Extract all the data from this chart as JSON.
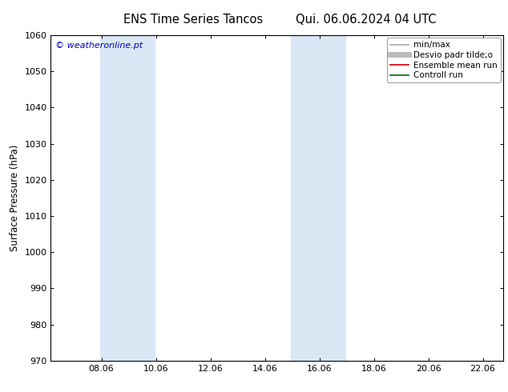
{
  "title_left": "ENS Time Series Tancos",
  "title_right": "Qui. 06.06.2024 04 UTC",
  "ylabel": "Surface Pressure (hPa)",
  "ylim": [
    970,
    1060
  ],
  "yticks": [
    970,
    980,
    990,
    1000,
    1010,
    1020,
    1030,
    1040,
    1050,
    1060
  ],
  "xlim_start": 6.2,
  "xlim_end": 22.8,
  "xtick_positions": [
    8.06,
    10.06,
    12.06,
    14.06,
    16.06,
    18.06,
    20.06,
    22.06
  ],
  "xtick_labels": [
    "08.06",
    "10.06",
    "12.06",
    "14.06",
    "16.06",
    "18.06",
    "20.06",
    "22.06"
  ],
  "shaded_bands": [
    {
      "xmin": 8.0,
      "xmax": 10.0
    },
    {
      "xmin": 15.0,
      "xmax": 17.0
    }
  ],
  "shade_color": "#dae8f5",
  "watermark": "© weatheronline.pt",
  "watermark_color": "#0000bb",
  "legend_items": [
    {
      "label": "min/max",
      "color": "#aaaaaa",
      "lw": 1.2
    },
    {
      "label": "Desvio padr tilde;o",
      "color": "#bbbbbb",
      "lw": 5
    },
    {
      "label": "Ensemble mean run",
      "color": "#cc0000",
      "lw": 1.2
    },
    {
      "label": "Controll run",
      "color": "#006600",
      "lw": 1.2
    }
  ],
  "bg_color": "#ffffff",
  "plot_bg_color": "#ffffff",
  "title_fontsize": 10.5,
  "tick_fontsize": 8,
  "ylabel_fontsize": 8.5,
  "legend_fontsize": 7.5,
  "watermark_fontsize": 8
}
